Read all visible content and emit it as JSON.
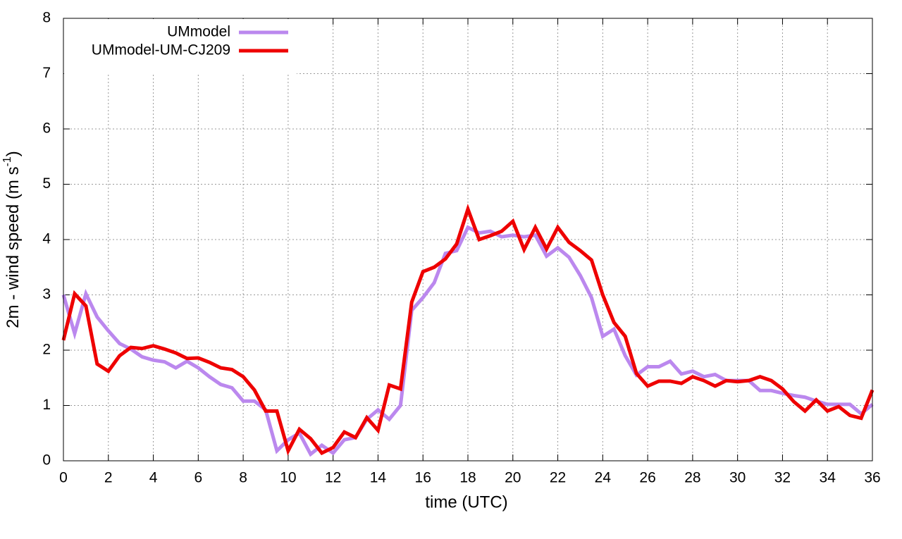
{
  "chart_data": {
    "type": "line",
    "x_label": "time (UTC)",
    "y_label": {
      "text": "2m - wind speed  (m s",
      "superscript": "-1",
      "suffix": ")"
    },
    "x": [
      0,
      0.5,
      1,
      1.5,
      2,
      2.5,
      3,
      3.5,
      4,
      4.5,
      5,
      5.5,
      6,
      6.5,
      7,
      7.5,
      8,
      8.5,
      9,
      9.5,
      10,
      10.5,
      11,
      11.5,
      12,
      12.5,
      13,
      13.5,
      14,
      14.5,
      15,
      15.5,
      16,
      16.5,
      17,
      17.5,
      18,
      18.5,
      19,
      19.5,
      20,
      20.5,
      21,
      21.5,
      22,
      22.5,
      23,
      23.5,
      24,
      24.5,
      25,
      25.5,
      26,
      26.5,
      27,
      27.5,
      28,
      28.5,
      29,
      29.5,
      30,
      30.5,
      31,
      31.5,
      32,
      32.5,
      33,
      33.5,
      34,
      34.5,
      35,
      35.5,
      36
    ],
    "series": [
      {
        "name": "UMmodel",
        "color": "#bb88ee",
        "values": [
          3.0,
          2.3,
          3.02,
          2.6,
          2.35,
          2.12,
          2.02,
          1.88,
          1.82,
          1.79,
          1.68,
          1.8,
          1.68,
          1.52,
          1.38,
          1.32,
          1.08,
          1.08,
          0.92,
          0.18,
          0.38,
          0.5,
          0.12,
          0.28,
          0.14,
          0.38,
          0.42,
          0.75,
          0.92,
          0.75,
          1.0,
          2.72,
          2.95,
          3.22,
          3.75,
          3.8,
          4.22,
          4.12,
          4.15,
          4.05,
          4.08,
          4.05,
          4.08,
          3.7,
          3.85,
          3.68,
          3.35,
          2.95,
          2.25,
          2.38,
          1.9,
          1.55,
          1.7,
          1.7,
          1.8,
          1.57,
          1.62,
          1.52,
          1.56,
          1.45,
          1.45,
          1.45,
          1.27,
          1.27,
          1.22,
          1.18,
          1.15,
          1.08,
          1.02,
          1.02,
          1.02,
          0.85,
          1.02
        ]
      },
      {
        "name": "UMmodel-UM-CJ209",
        "color": "#ee0000",
        "values": [
          2.18,
          3.02,
          2.8,
          1.75,
          1.62,
          1.9,
          2.05,
          2.03,
          2.08,
          2.02,
          1.95,
          1.85,
          1.86,
          1.78,
          1.68,
          1.65,
          1.52,
          1.28,
          0.9,
          0.9,
          0.18,
          0.57,
          0.4,
          0.14,
          0.24,
          0.52,
          0.42,
          0.78,
          0.55,
          1.37,
          1.3,
          2.87,
          3.42,
          3.5,
          3.65,
          3.92,
          4.55,
          4.0,
          4.07,
          4.15,
          4.33,
          3.82,
          4.22,
          3.83,
          4.22,
          3.95,
          3.8,
          3.63,
          3.0,
          2.5,
          2.25,
          1.58,
          1.35,
          1.44,
          1.44,
          1.4,
          1.52,
          1.45,
          1.35,
          1.45,
          1.43,
          1.45,
          1.52,
          1.45,
          1.3,
          1.07,
          0.9,
          1.1,
          0.9,
          0.98,
          0.82,
          0.77,
          1.28
        ]
      }
    ],
    "xlim": [
      0,
      36
    ],
    "xticks": [
      0,
      2,
      4,
      6,
      8,
      10,
      12,
      14,
      16,
      18,
      20,
      22,
      24,
      26,
      28,
      30,
      32,
      34,
      36
    ],
    "ylim": [
      0,
      8
    ],
    "yticks": [
      0,
      1,
      2,
      3,
      4,
      5,
      6,
      7,
      8
    ],
    "grid": true,
    "legend": "top-left"
  }
}
